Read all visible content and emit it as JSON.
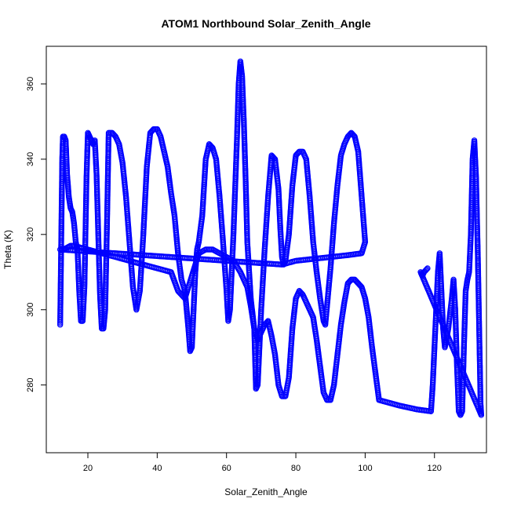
{
  "chart_data": {
    "type": "scatter",
    "title": "ATOM1 Northbound Solar_Zenith_Angle",
    "xlabel": "Solar_Zenith_Angle",
    "ylabel": "Theta (K)",
    "xlim": [
      8,
      135
    ],
    "ylim": [
      262,
      370
    ],
    "xticks": [
      20,
      40,
      60,
      80,
      100,
      120
    ],
    "yticks": [
      280,
      300,
      320,
      340,
      360
    ],
    "grid": false,
    "legend": "none",
    "marker": "open-circle",
    "series_color": "#0000ff",
    "series": [
      {
        "points": [
          [
            12,
            296
          ],
          [
            12.2,
            310
          ],
          [
            12.4,
            325
          ],
          [
            12.6,
            340
          ],
          [
            12.8,
            346
          ],
          [
            13.2,
            346
          ],
          [
            13.6,
            345
          ],
          [
            14,
            336
          ],
          [
            14.5,
            330
          ],
          [
            15,
            327
          ],
          [
            15.5,
            326
          ],
          [
            16,
            323
          ],
          [
            16.5,
            318
          ],
          [
            17,
            316
          ],
          [
            17.5,
            305
          ],
          [
            18,
            297
          ],
          [
            18.5,
            297
          ],
          [
            19,
            306
          ],
          [
            19.3,
            320
          ],
          [
            19.6,
            335
          ],
          [
            20,
            347
          ],
          [
            20.5,
            346
          ],
          [
            21,
            345
          ],
          [
            21.5,
            344
          ],
          [
            22,
            345
          ],
          [
            22.5,
            336
          ],
          [
            23,
            320
          ],
          [
            23.5,
            304
          ],
          [
            24,
            295
          ],
          [
            24.5,
            295
          ],
          [
            25,
            300
          ],
          [
            25.5,
            322
          ],
          [
            26,
            347
          ],
          [
            27,
            347
          ],
          [
            28,
            346
          ],
          [
            29,
            344
          ],
          [
            30,
            339
          ],
          [
            31,
            330
          ],
          [
            32,
            318
          ],
          [
            33,
            306
          ],
          [
            34,
            300
          ],
          [
            35,
            305
          ],
          [
            36,
            320
          ],
          [
            37,
            338
          ],
          [
            38,
            347
          ],
          [
            39,
            348
          ],
          [
            40,
            348
          ],
          [
            41,
            346
          ],
          [
            42,
            342
          ],
          [
            43,
            338
          ],
          [
            44,
            331
          ],
          [
            45,
            325
          ],
          [
            46,
            315
          ],
          [
            47,
            308
          ],
          [
            48,
            305
          ],
          [
            48.5,
            300
          ],
          [
            49,
            295
          ],
          [
            49.5,
            289
          ],
          [
            50,
            290
          ],
          [
            50.5,
            300
          ],
          [
            51,
            310
          ],
          [
            51.5,
            316
          ],
          [
            52,
            318
          ],
          [
            53,
            325
          ],
          [
            54,
            340
          ],
          [
            55,
            344
          ],
          [
            56,
            343
          ],
          [
            57,
            340
          ],
          [
            58,
            330
          ],
          [
            59,
            318
          ],
          [
            60,
            305
          ],
          [
            60.5,
            297
          ],
          [
            61,
            300
          ],
          [
            62,
            320
          ],
          [
            63,
            345
          ],
          [
            63.5,
            360
          ],
          [
            64,
            366
          ],
          [
            64.5,
            362
          ],
          [
            65,
            350
          ],
          [
            65.5,
            335
          ],
          [
            66,
            318
          ],
          [
            67,
            303
          ],
          [
            68,
            295
          ],
          [
            68.5,
            279
          ],
          [
            69,
            280
          ],
          [
            70,
            300
          ],
          [
            71,
            316
          ],
          [
            72,
            330
          ],
          [
            73,
            341
          ],
          [
            74,
            340
          ],
          [
            75,
            332
          ],
          [
            75.5,
            322
          ],
          [
            76,
            314
          ],
          [
            76.5,
            312
          ],
          [
            77,
            313
          ],
          [
            78,
            320
          ],
          [
            79,
            333
          ],
          [
            80,
            341
          ],
          [
            81,
            342
          ],
          [
            82,
            342
          ],
          [
            83,
            340
          ],
          [
            84,
            330
          ],
          [
            85,
            318
          ],
          [
            86,
            310
          ],
          [
            87,
            303
          ],
          [
            88,
            297
          ],
          [
            88.5,
            296
          ],
          [
            89,
            301
          ],
          [
            90,
            311
          ],
          [
            91,
            323
          ],
          [
            92,
            333
          ],
          [
            93,
            341
          ],
          [
            94,
            344
          ],
          [
            95,
            346
          ],
          [
            96,
            347
          ],
          [
            97,
            346
          ],
          [
            98,
            342
          ],
          [
            99,
            330
          ],
          [
            100,
            318
          ],
          [
            99,
            315
          ],
          [
            95,
            314.5
          ],
          [
            90,
            314
          ],
          [
            85,
            313.5
          ],
          [
            80,
            313
          ],
          [
            76,
            312
          ],
          [
            12,
            316
          ],
          [
            13,
            316
          ],
          [
            14,
            316.5
          ],
          [
            15,
            317
          ],
          [
            16,
            317
          ],
          [
            44,
            310
          ],
          [
            46,
            305
          ],
          [
            48,
            303
          ],
          [
            52,
            315
          ],
          [
            54,
            316
          ],
          [
            56,
            316
          ],
          [
            58,
            315
          ],
          [
            60,
            314
          ],
          [
            62,
            313
          ],
          [
            64,
            310
          ],
          [
            66,
            306
          ],
          [
            67,
            301
          ],
          [
            68,
            295
          ],
          [
            69,
            292
          ],
          [
            70,
            294
          ],
          [
            71,
            296
          ],
          [
            72,
            297
          ],
          [
            73,
            293
          ],
          [
            74,
            288
          ],
          [
            75,
            280
          ],
          [
            76,
            277
          ],
          [
            77,
            277
          ],
          [
            78,
            282
          ],
          [
            79,
            295
          ],
          [
            80,
            303
          ],
          [
            81,
            305
          ],
          [
            82,
            304
          ],
          [
            83,
            302
          ],
          [
            84,
            300
          ],
          [
            85,
            298
          ],
          [
            86,
            292
          ],
          [
            87,
            285
          ],
          [
            88,
            278
          ],
          [
            89,
            276
          ],
          [
            90,
            276
          ],
          [
            91,
            280
          ],
          [
            92,
            288
          ],
          [
            93,
            296
          ],
          [
            94,
            302
          ],
          [
            95,
            307
          ],
          [
            96,
            308
          ],
          [
            97,
            308
          ],
          [
            98,
            307
          ],
          [
            99,
            306
          ],
          [
            100,
            303
          ],
          [
            101,
            298
          ],
          [
            102,
            290
          ],
          [
            103,
            283
          ],
          [
            104,
            276
          ],
          [
            110,
            274.5
          ],
          [
            115,
            273.5
          ],
          [
            119,
            273
          ],
          [
            119.5,
            280
          ],
          [
            120,
            290
          ],
          [
            120.5,
            300
          ],
          [
            121,
            310
          ],
          [
            121.5,
            315
          ],
          [
            122,
            305
          ],
          [
            122.5,
            295
          ],
          [
            123,
            290
          ],
          [
            124,
            295
          ],
          [
            125,
            303
          ],
          [
            125.5,
            308
          ],
          [
            126,
            300
          ],
          [
            126.5,
            285
          ],
          [
            127,
            273
          ],
          [
            127.5,
            272
          ],
          [
            128,
            273
          ],
          [
            128.5,
            290
          ],
          [
            129,
            305
          ],
          [
            129.5,
            308
          ],
          [
            130,
            310
          ],
          [
            130.5,
            320
          ],
          [
            131,
            340
          ],
          [
            131.5,
            345
          ],
          [
            132,
            335
          ],
          [
            132.5,
            315
          ],
          [
            133,
            290
          ],
          [
            133.3,
            275
          ],
          [
            133.5,
            272
          ],
          [
            116,
            310
          ],
          [
            116.5,
            309
          ],
          [
            117,
            310
          ],
          [
            118,
            311
          ]
        ]
      }
    ]
  }
}
